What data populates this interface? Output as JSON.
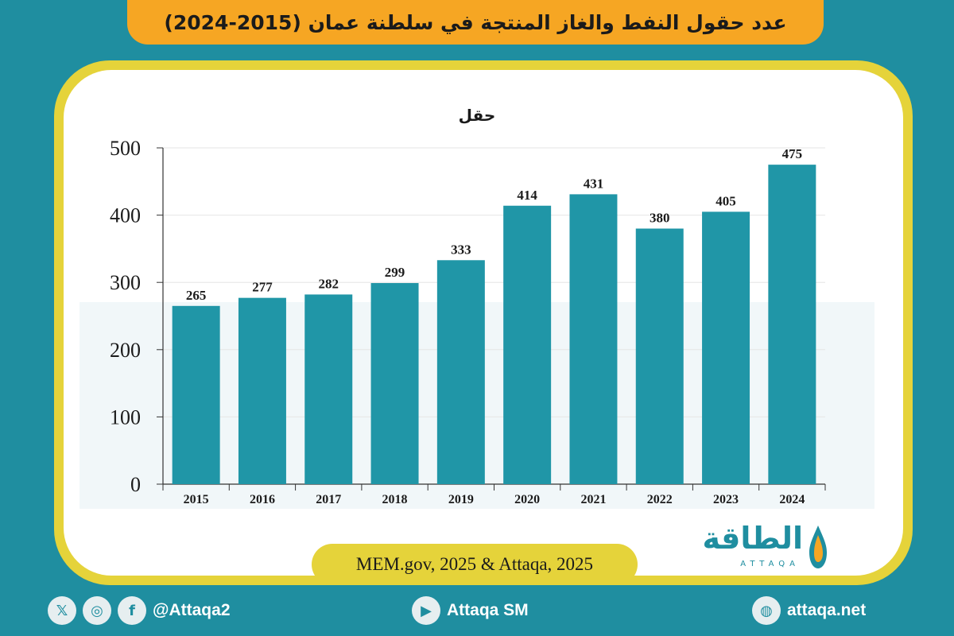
{
  "title": "عدد حقول النفط والغاز المنتجة في سلطنة عمان (2015-2024)",
  "source": "MEM.gov, 2025 & Attaqa, 2025",
  "logo": {
    "arabic": "الطاقة",
    "latin": "ATTAQA"
  },
  "footer": {
    "handle": "@Attaqa2",
    "youtube": "Attaqa SM",
    "website": "attaqa.net"
  },
  "colors": {
    "bar": "#2096a7",
    "banner": "#f6a623",
    "frame": "#e5d33a",
    "background": "#1f8ea0"
  },
  "chart_data": {
    "type": "bar",
    "unit_label": "حقل",
    "categories": [
      "2015",
      "2016",
      "2017",
      "2018",
      "2019",
      "2020",
      "2021",
      "2022",
      "2023",
      "2024"
    ],
    "values": [
      265,
      277,
      282,
      299,
      333,
      414,
      431,
      380,
      405,
      475
    ],
    "yticks": [
      0,
      100,
      200,
      300,
      400,
      500
    ],
    "ylim": [
      0,
      500
    ],
    "grid": true,
    "data_labels": true
  }
}
